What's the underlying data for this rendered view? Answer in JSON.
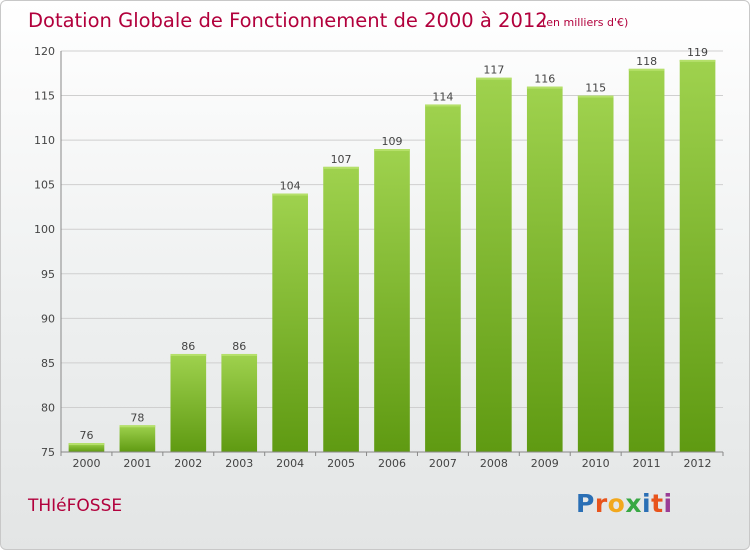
{
  "header": {
    "title": "Dotation Globale de Fonctionnement de 2000 à 2012",
    "subtitle": "(en milliers d'€)"
  },
  "footer": {
    "commune": "THIéFOSSE",
    "logo_text": "Proxiti",
    "logo_colors": [
      "#2a6fb5",
      "#e8541c",
      "#f2a81d",
      "#38a843",
      "#2a6fb5",
      "#e8541c",
      "#9b3d96"
    ]
  },
  "chart_data": {
    "type": "bar",
    "title": "Dotation Globale de Fonctionnement de 2000 à 2012",
    "subtitle": "(en milliers d'€)",
    "categories": [
      "2000",
      "2001",
      "2002",
      "2003",
      "2004",
      "2005",
      "2006",
      "2007",
      "2008",
      "2009",
      "2010",
      "2011",
      "2012"
    ],
    "values": [
      76,
      78,
      86,
      86,
      104,
      107,
      109,
      114,
      117,
      116,
      115,
      118,
      119
    ],
    "ylim": [
      75,
      120
    ],
    "yticks": [
      75,
      80,
      85,
      90,
      95,
      100,
      105,
      110,
      115,
      120
    ],
    "grid": true,
    "data_labels": true,
    "colors": {
      "bar_light": "#9fd24e",
      "bar_dark": "#5f9a12",
      "grid": "#cfcfcf",
      "axis": "#888888"
    }
  }
}
